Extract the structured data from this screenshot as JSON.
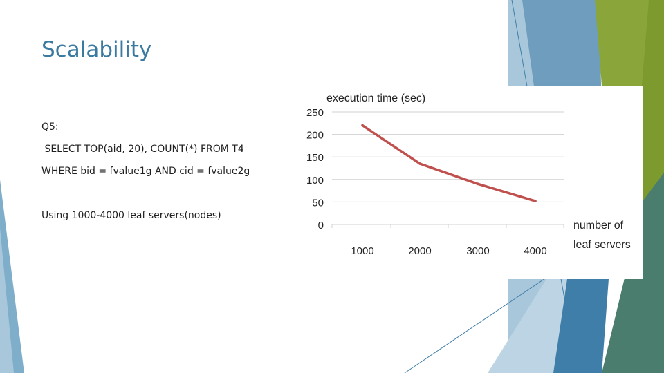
{
  "slide": {
    "title": "Scalability",
    "lines": [
      "Q5:",
      " SELECT TOP(aid, 20), COUNT(*) FROM T4",
      "WHERE bid = fvalue1g AND cid = fvalue2g",
      "Using 1000-4000 leaf servers(nodes)"
    ]
  },
  "colors": {
    "title": "#3a7aa0",
    "line": "#c0504d",
    "deco_dark_blue": "#3f7ea8",
    "deco_light_blue": "#8fb7d0",
    "deco_green": "#7c9a2e",
    "deco_teal": "#4a7d6e"
  },
  "chart_data": {
    "type": "line",
    "title": "execution time (sec)",
    "xlabel_lines": [
      "number of",
      "leaf servers"
    ],
    "ylabel": "",
    "x": [
      1000,
      2000,
      3000,
      4000
    ],
    "y": [
      220,
      135,
      90,
      52
    ],
    "yticks": [
      0,
      50,
      100,
      150,
      200,
      250
    ],
    "ylim": [
      0,
      250
    ],
    "grid": true,
    "legend": "none"
  }
}
